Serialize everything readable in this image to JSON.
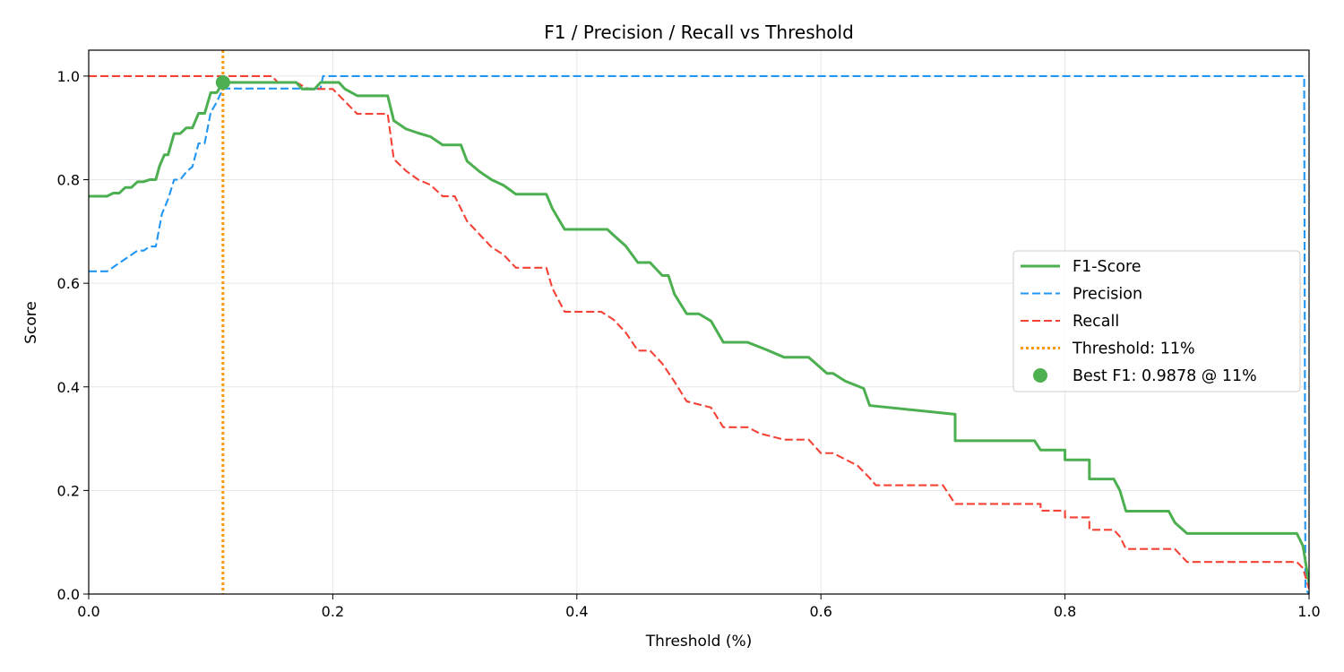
{
  "chart_data": {
    "type": "line",
    "title": "F1 / Precision / Recall vs Threshold",
    "xlabel": "Threshold (%)",
    "ylabel": "Score",
    "xlim": [
      0,
      1
    ],
    "ylim": [
      0,
      1.05
    ],
    "x_ticks": [
      "0.0",
      "0.2",
      "0.4",
      "0.6",
      "0.8",
      "1.0"
    ],
    "y_ticks": [
      "0.0",
      "0.2",
      "0.4",
      "0.6",
      "0.8",
      "1.0"
    ],
    "grid": true,
    "legend_position": "center-right",
    "series": [
      {
        "name": "F1-Score",
        "color": "#4caf50",
        "style": "solid",
        "x": [
          0.0,
          0.015,
          0.02,
          0.025,
          0.03,
          0.035,
          0.04,
          0.045,
          0.05,
          0.055,
          0.058,
          0.062,
          0.065,
          0.07,
          0.075,
          0.08,
          0.085,
          0.09,
          0.095,
          0.1,
          0.105,
          0.11,
          0.115,
          0.12,
          0.17,
          0.175,
          0.18,
          0.185,
          0.19,
          0.205,
          0.21,
          0.22,
          0.245,
          0.25,
          0.26,
          0.27,
          0.28,
          0.29,
          0.305,
          0.31,
          0.32,
          0.33,
          0.34,
          0.35,
          0.375,
          0.38,
          0.39,
          0.425,
          0.43,
          0.44,
          0.45,
          0.46,
          0.47,
          0.475,
          0.48,
          0.49,
          0.5,
          0.51,
          0.52,
          0.54,
          0.555,
          0.57,
          0.59,
          0.605,
          0.61,
          0.62,
          0.635,
          0.64,
          0.71,
          0.71,
          0.74,
          0.775,
          0.78,
          0.8,
          0.8,
          0.82,
          0.82,
          0.84,
          0.845,
          0.85,
          0.885,
          0.89,
          0.9,
          0.99,
          0.995,
          1.0
        ],
        "values": [
          0.768,
          0.768,
          0.774,
          0.774,
          0.785,
          0.785,
          0.796,
          0.796,
          0.8,
          0.8,
          0.826,
          0.848,
          0.848,
          0.889,
          0.889,
          0.9,
          0.9,
          0.928,
          0.928,
          0.968,
          0.968,
          0.9878,
          0.9878,
          0.9878,
          0.9878,
          0.975,
          0.975,
          0.975,
          0.9878,
          0.9878,
          0.975,
          0.962,
          0.962,
          0.914,
          0.898,
          0.89,
          0.883,
          0.867,
          0.867,
          0.836,
          0.816,
          0.8,
          0.789,
          0.772,
          0.772,
          0.744,
          0.704,
          0.704,
          0.693,
          0.672,
          0.64,
          0.64,
          0.615,
          0.615,
          0.579,
          0.541,
          0.541,
          0.527,
          0.486,
          0.486,
          0.472,
          0.457,
          0.457,
          0.426,
          0.426,
          0.411,
          0.397,
          0.364,
          0.347,
          0.296,
          0.296,
          0.296,
          0.278,
          0.278,
          0.259,
          0.259,
          0.222,
          0.222,
          0.2,
          0.16,
          0.16,
          0.138,
          0.117,
          0.117,
          0.093,
          0.02
        ]
      },
      {
        "name": "Precision",
        "color": "#2196f3",
        "style": "dashed",
        "x": [
          0.0,
          0.015,
          0.02,
          0.025,
          0.03,
          0.035,
          0.04,
          0.045,
          0.05,
          0.055,
          0.06,
          0.065,
          0.07,
          0.075,
          0.08,
          0.085,
          0.09,
          0.095,
          0.1,
          0.105,
          0.11,
          0.115,
          0.19,
          0.192,
          0.996,
          0.997,
          1.0
        ],
        "values": [
          0.623,
          0.623,
          0.631,
          0.639,
          0.647,
          0.655,
          0.663,
          0.663,
          0.671,
          0.671,
          0.734,
          0.762,
          0.8,
          0.8,
          0.815,
          0.825,
          0.87,
          0.87,
          0.93,
          0.95,
          0.976,
          0.976,
          0.976,
          1.0,
          1.0,
          0.01,
          0.0
        ]
      },
      {
        "name": "Recall",
        "color": "#f44336",
        "style": "dashed",
        "x": [
          0.0,
          0.11,
          0.15,
          0.155,
          0.17,
          0.18,
          0.2,
          0.21,
          0.22,
          0.245,
          0.25,
          0.26,
          0.27,
          0.28,
          0.29,
          0.3,
          0.31,
          0.32,
          0.33,
          0.34,
          0.35,
          0.36,
          0.375,
          0.38,
          0.39,
          0.42,
          0.43,
          0.44,
          0.45,
          0.46,
          0.47,
          0.48,
          0.49,
          0.51,
          0.52,
          0.54,
          0.55,
          0.57,
          0.59,
          0.6,
          0.61,
          0.62,
          0.63,
          0.64,
          0.645,
          0.7,
          0.71,
          0.78,
          0.78,
          0.8,
          0.8,
          0.82,
          0.82,
          0.84,
          0.845,
          0.85,
          0.89,
          0.9,
          0.99,
          0.995,
          1.0
        ],
        "values": [
          1.0,
          1.0,
          1.0,
          0.988,
          0.988,
          0.975,
          0.975,
          0.951,
          0.927,
          0.927,
          0.84,
          0.817,
          0.8,
          0.79,
          0.768,
          0.768,
          0.72,
          0.695,
          0.67,
          0.655,
          0.63,
          0.63,
          0.63,
          0.59,
          0.545,
          0.545,
          0.53,
          0.505,
          0.47,
          0.47,
          0.445,
          0.41,
          0.372,
          0.36,
          0.322,
          0.322,
          0.31,
          0.298,
          0.298,
          0.272,
          0.272,
          0.26,
          0.248,
          0.224,
          0.21,
          0.21,
          0.174,
          0.174,
          0.161,
          0.161,
          0.148,
          0.148,
          0.124,
          0.124,
          0.111,
          0.087,
          0.087,
          0.062,
          0.062,
          0.05,
          0.01
        ]
      }
    ],
    "threshold_line": {
      "name": "Threshold: 11%",
      "x": 0.11,
      "color": "#ff9800",
      "style": "dotted"
    },
    "best_point": {
      "name": "Best F1: 0.9878 @ 11%",
      "x": 0.11,
      "y": 0.9878,
      "color": "#4caf50"
    },
    "legend": [
      "F1-Score",
      "Precision",
      "Recall",
      "Threshold: 11%",
      "Best F1: 0.9878 @ 11%"
    ]
  }
}
